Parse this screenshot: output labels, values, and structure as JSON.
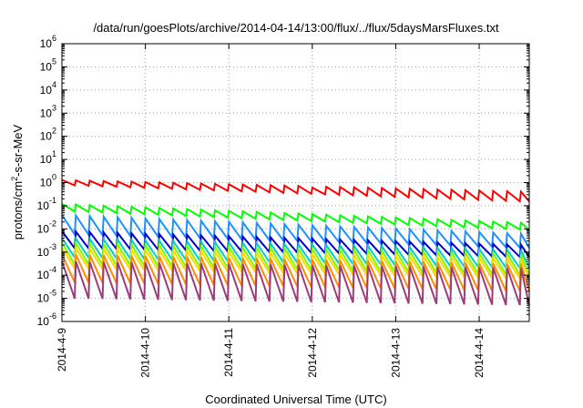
{
  "chart_data": {
    "type": "line",
    "title": "/data/run/goesPlots/archive/2014-04-14/13:00/flux/../flux/5daysMarsFluxes.txt",
    "xlabel": "Coordinated Universal Time (UTC)",
    "ylabel": "protons/cm²-s-sr-MeV",
    "ylabel_parts": {
      "pre": "protons/cm",
      "sup": "2",
      "post": "-s-sr-MeV"
    },
    "yscale": "log",
    "ylim": [
      1e-06,
      1000000.0
    ],
    "xlim": [
      0,
      5.6
    ],
    "grid": true,
    "ytick_labels": [
      {
        "base": "10",
        "exp": "-6"
      },
      {
        "base": "10",
        "exp": "-5"
      },
      {
        "base": "10",
        "exp": "-4"
      },
      {
        "base": "10",
        "exp": "-3"
      },
      {
        "base": "10",
        "exp": "-2"
      },
      {
        "base": "10",
        "exp": "-1"
      },
      {
        "base": "10",
        "exp": "0"
      },
      {
        "base": "10",
        "exp": "1"
      },
      {
        "base": "10",
        "exp": "2"
      },
      {
        "base": "10",
        "exp": "3"
      },
      {
        "base": "10",
        "exp": "4"
      },
      {
        "base": "10",
        "exp": "5"
      },
      {
        "base": "10",
        "exp": "6"
      }
    ],
    "xtick_labels": [
      "2014-4-9",
      "2014-4-10",
      "2014-4-11",
      "2014-4-12",
      "2014-4-13",
      "2014-4-14"
    ],
    "sawtooth_period_days": 0.1667,
    "series": [
      {
        "color": "#ff0000",
        "peak": [
          1.3,
          0.4
        ],
        "trough": [
          0.8,
          0.15
        ],
        "jump": {
          "day": 3.05,
          "value": 0.6
        }
      },
      {
        "color": "#00ff00",
        "peak": [
          0.12,
          0.018
        ],
        "trough": [
          0.06,
          0.009
        ]
      },
      {
        "color": "#1e90ff",
        "peak": [
          0.04,
          0.006
        ],
        "trough": [
          0.006,
          0.0015
        ]
      },
      {
        "color": "#0000cd",
        "peak": [
          0.008,
          0.002
        ],
        "trough": [
          0.0015,
          0.0006
        ]
      },
      {
        "color": "#00ced1",
        "peak": [
          0.004,
          0.0012
        ],
        "trough": [
          0.0006,
          0.0002
        ]
      },
      {
        "color": "#7cfc00",
        "peak": [
          0.0025,
          0.0008
        ],
        "trough": [
          0.0003,
          0.0001
        ]
      },
      {
        "color": "#ffd700",
        "peak": [
          0.0015,
          0.0005
        ],
        "trough": [
          0.0002,
          7e-05
        ]
      },
      {
        "color": "#ff8c00",
        "peak": [
          0.0008,
          0.0003
        ],
        "trough": [
          5e-05,
          2e-05
        ]
      },
      {
        "color": "#9b3d7a",
        "peak": [
          0.0004,
          0.0002
        ],
        "trough": [
          1e-05,
          5e-06
        ]
      }
    ]
  }
}
